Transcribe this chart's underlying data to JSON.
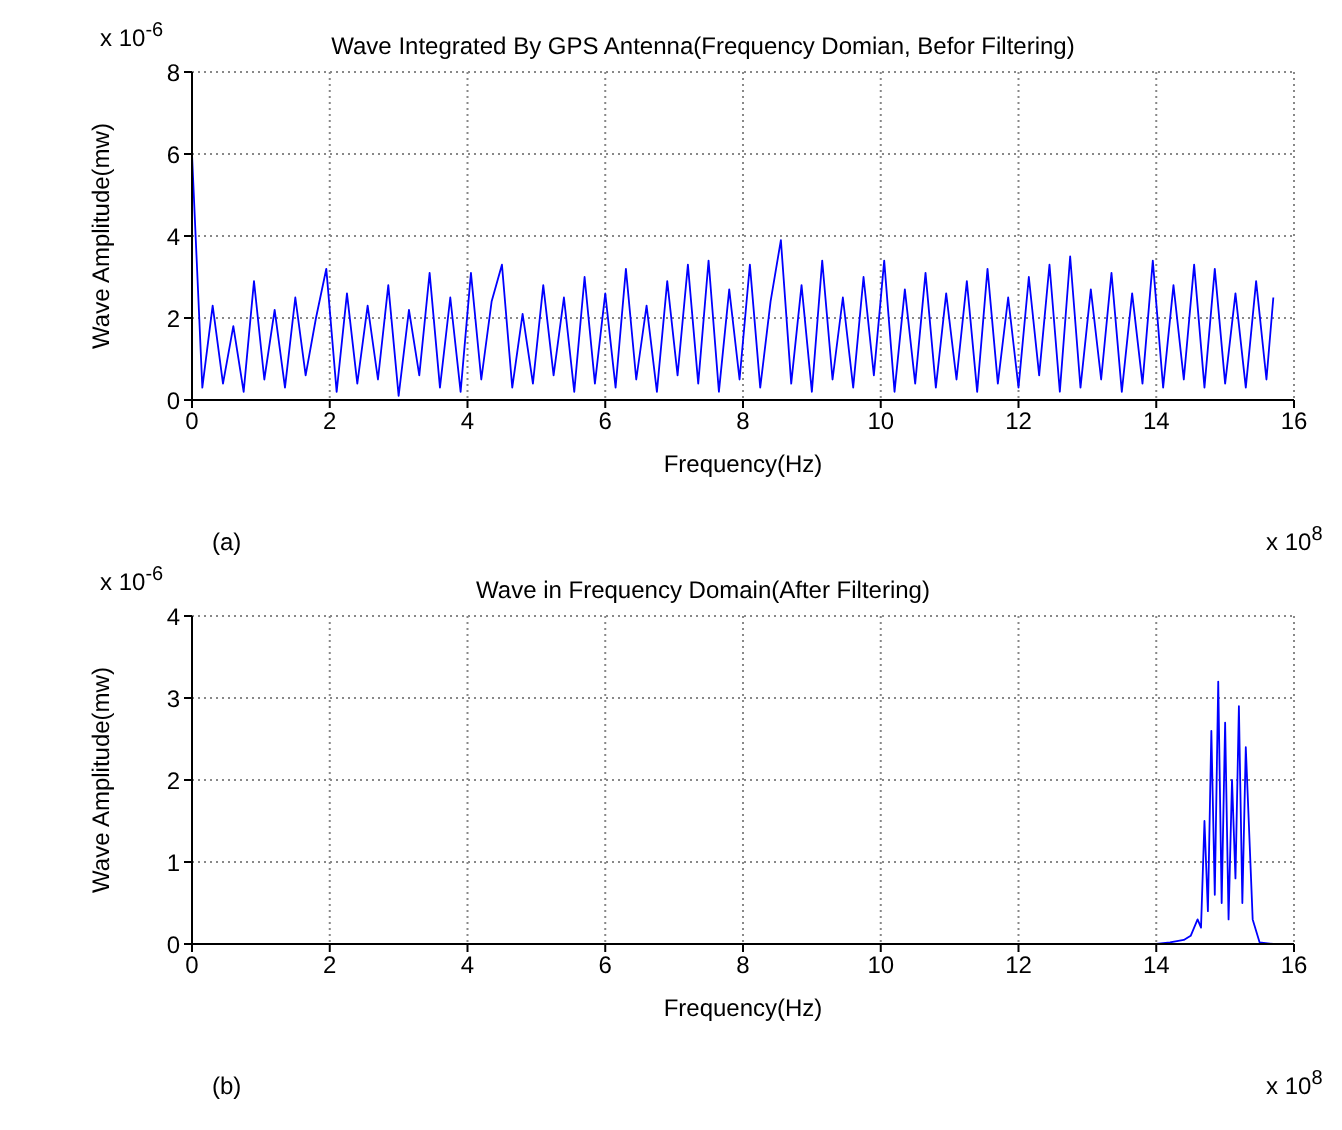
{
  "chart_data": [
    {
      "type": "line",
      "title": "Wave Integrated By GPS Antenna(Frequency Domian, Befor Filtering)",
      "xlabel": "Frequency(Hz)",
      "ylabel": "Wave Amplitude(mw)",
      "annotations": [
        "x 10$^{-6}$",
        "x 10$^{8}$",
        "(a)"
      ],
      "x": [
        0,
        0.15,
        0.3,
        0.45,
        0.6,
        0.75,
        0.9,
        1.05,
        1.2,
        1.35,
        1.5,
        1.65,
        1.8,
        1.95,
        2.1,
        2.25,
        2.4,
        2.55,
        2.7,
        2.85,
        3.0,
        3.15,
        3.3,
        3.45,
        3.6,
        3.75,
        3.9,
        4.05,
        4.2,
        4.35,
        4.5,
        4.65,
        4.8,
        4.95,
        5.1,
        5.25,
        5.4,
        5.55,
        5.7,
        5.85,
        6.0,
        6.15,
        6.3,
        6.45,
        6.6,
        6.75,
        6.9,
        7.05,
        7.2,
        7.35,
        7.5,
        7.65,
        7.8,
        7.95,
        8.1,
        8.25,
        8.4,
        8.55,
        8.7,
        8.85,
        9.0,
        9.15,
        9.3,
        9.45,
        9.6,
        9.75,
        9.9,
        10.05,
        10.2,
        10.35,
        10.5,
        10.65,
        10.8,
        10.95,
        11.1,
        11.25,
        11.4,
        11.55,
        11.7,
        11.85,
        12.0,
        12.15,
        12.3,
        12.45,
        12.6,
        12.75,
        12.9,
        13.05,
        13.2,
        13.35,
        13.5,
        13.65,
        13.8,
        13.95,
        14.1,
        14.25,
        14.4,
        14.55,
        14.7,
        14.85,
        15.0,
        15.15,
        15.3,
        15.45,
        15.6,
        15.7
      ],
      "series": [
        {
          "color": "#0000ff",
          "values": [
            6.0,
            0.3,
            2.3,
            0.4,
            1.8,
            0.2,
            2.9,
            0.5,
            2.2,
            0.3,
            2.5,
            0.6,
            2.0,
            3.2,
            0.2,
            2.6,
            0.4,
            2.3,
            0.5,
            2.8,
            0.1,
            2.2,
            0.6,
            3.1,
            0.3,
            2.5,
            0.2,
            3.1,
            0.5,
            2.4,
            3.3,
            0.3,
            2.1,
            0.4,
            2.8,
            0.6,
            2.5,
            0.2,
            3.0,
            0.4,
            2.6,
            0.3,
            3.2,
            0.5,
            2.3,
            0.2,
            2.9,
            0.6,
            3.3,
            0.4,
            3.4,
            0.2,
            2.7,
            0.5,
            3.3,
            0.3,
            2.4,
            3.9,
            0.4,
            2.8,
            0.2,
            3.4,
            0.5,
            2.5,
            0.3,
            3.0,
            0.6,
            3.4,
            0.2,
            2.7,
            0.4,
            3.1,
            0.3,
            2.6,
            0.5,
            2.9,
            0.2,
            3.2,
            0.4,
            2.5,
            0.3,
            3.0,
            0.6,
            3.3,
            0.2,
            3.5,
            0.3,
            2.7,
            0.5,
            3.1,
            0.2,
            2.6,
            0.4,
            3.4,
            0.3,
            2.8,
            0.5,
            3.3,
            0.3,
            3.2,
            0.4,
            2.6,
            0.3,
            2.9,
            0.5,
            2.5
          ]
        }
      ],
      "xlim": [
        0,
        16
      ],
      "xticks": [
        0,
        2,
        4,
        6,
        8,
        10,
        12,
        14,
        16
      ],
      "ylim": [
        0,
        8
      ],
      "yticks": [
        0,
        2,
        4,
        6,
        8
      ],
      "grid": true,
      "line_style": "solid",
      "marker": "none"
    },
    {
      "type": "line",
      "title": "Wave in Frequency Domain(After Filtering)",
      "xlabel": "Frequency(Hz)",
      "ylabel": "Wave Amplitude(mw)",
      "annotations": [
        "x 10$^{-6}$",
        "x 10$^{8}$",
        "(b)"
      ],
      "x": [
        0,
        14.0,
        14.2,
        14.4,
        14.5,
        14.6,
        14.65,
        14.7,
        14.75,
        14.8,
        14.85,
        14.9,
        14.95,
        15.0,
        15.05,
        15.1,
        15.15,
        15.2,
        15.25,
        15.3,
        15.4,
        15.5,
        15.7
      ],
      "series": [
        {
          "color": "#0000ff",
          "values": [
            0,
            0,
            0.02,
            0.05,
            0.1,
            0.3,
            0.2,
            1.5,
            0.4,
            2.6,
            0.6,
            3.2,
            0.5,
            2.7,
            0.3,
            2.0,
            0.8,
            2.9,
            0.5,
            2.4,
            0.3,
            0.02,
            0
          ]
        }
      ],
      "xlim": [
        0,
        16
      ],
      "xticks": [
        0,
        2,
        4,
        6,
        8,
        10,
        12,
        14,
        16
      ],
      "ylim": [
        0,
        4
      ],
      "yticks": [
        0,
        1,
        2,
        3,
        4
      ],
      "grid": true,
      "line_style": "solid",
      "marker": "none"
    }
  ]
}
